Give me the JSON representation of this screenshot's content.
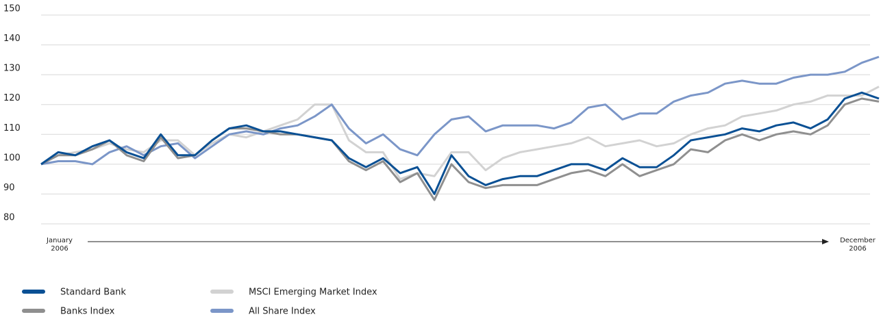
{
  "chart_data": {
    "type": "line",
    "x_start_label": {
      "month": "January",
      "year": "2006"
    },
    "x_end_label": {
      "month": "December",
      "year": "2006"
    },
    "ylim": [
      80,
      150
    ],
    "yticks": [
      80,
      90,
      100,
      110,
      120,
      130,
      140,
      150
    ],
    "grid": true,
    "legend": "bottom",
    "series": [
      {
        "name": "MSCI Emerging Market Index",
        "color": "#d2d2d2",
        "values": [
          100,
          103,
          104,
          105,
          107,
          105,
          104,
          108,
          108,
          103,
          107,
          110,
          109,
          111,
          113,
          115,
          120,
          120,
          108,
          104,
          104,
          95,
          97,
          96,
          104,
          104,
          98,
          102,
          104,
          105,
          106,
          107,
          109,
          106,
          107,
          108,
          106,
          107,
          110,
          112,
          113,
          116,
          117,
          118,
          120,
          121,
          123,
          123,
          123,
          126
        ]
      },
      {
        "name": "All Share Index",
        "color": "#7b96c8",
        "values": [
          100,
          101,
          101,
          100,
          104,
          106,
          103,
          106,
          107,
          102,
          106,
          110,
          111,
          110,
          112,
          113,
          116,
          120,
          112,
          107,
          110,
          105,
          103,
          110,
          115,
          116,
          111,
          113,
          113,
          113,
          112,
          114,
          119,
          120,
          115,
          117,
          117,
          121,
          123,
          124,
          127,
          128,
          127,
          127,
          129,
          130,
          130,
          131,
          134,
          136
        ]
      },
      {
        "name": "Banks Index",
        "color": "#8f8f8f",
        "values": [
          100,
          103,
          103,
          105,
          108,
          103,
          101,
          109,
          102,
          103,
          108,
          112,
          112,
          111,
          110,
          110,
          109,
          108,
          101,
          98,
          101,
          94,
          97,
          88,
          100,
          94,
          92,
          93,
          93,
          93,
          95,
          97,
          98,
          96,
          100,
          96,
          98,
          100,
          105,
          104,
          108,
          110,
          108,
          110,
          111,
          110,
          113,
          120,
          122,
          121
        ]
      },
      {
        "name": "Standard Bank",
        "color": "#0a5094",
        "values": [
          100,
          104,
          103,
          106,
          108,
          104,
          102,
          110,
          103,
          103,
          108,
          112,
          113,
          111,
          111,
          110,
          109,
          108,
          102,
          99,
          102,
          97,
          99,
          90,
          103,
          96,
          93,
          95,
          96,
          96,
          98,
          100,
          100,
          98,
          102,
          99,
          99,
          103,
          108,
          109,
          110,
          112,
          111,
          113,
          114,
          112,
          115,
          122,
          124,
          122
        ]
      }
    ]
  }
}
